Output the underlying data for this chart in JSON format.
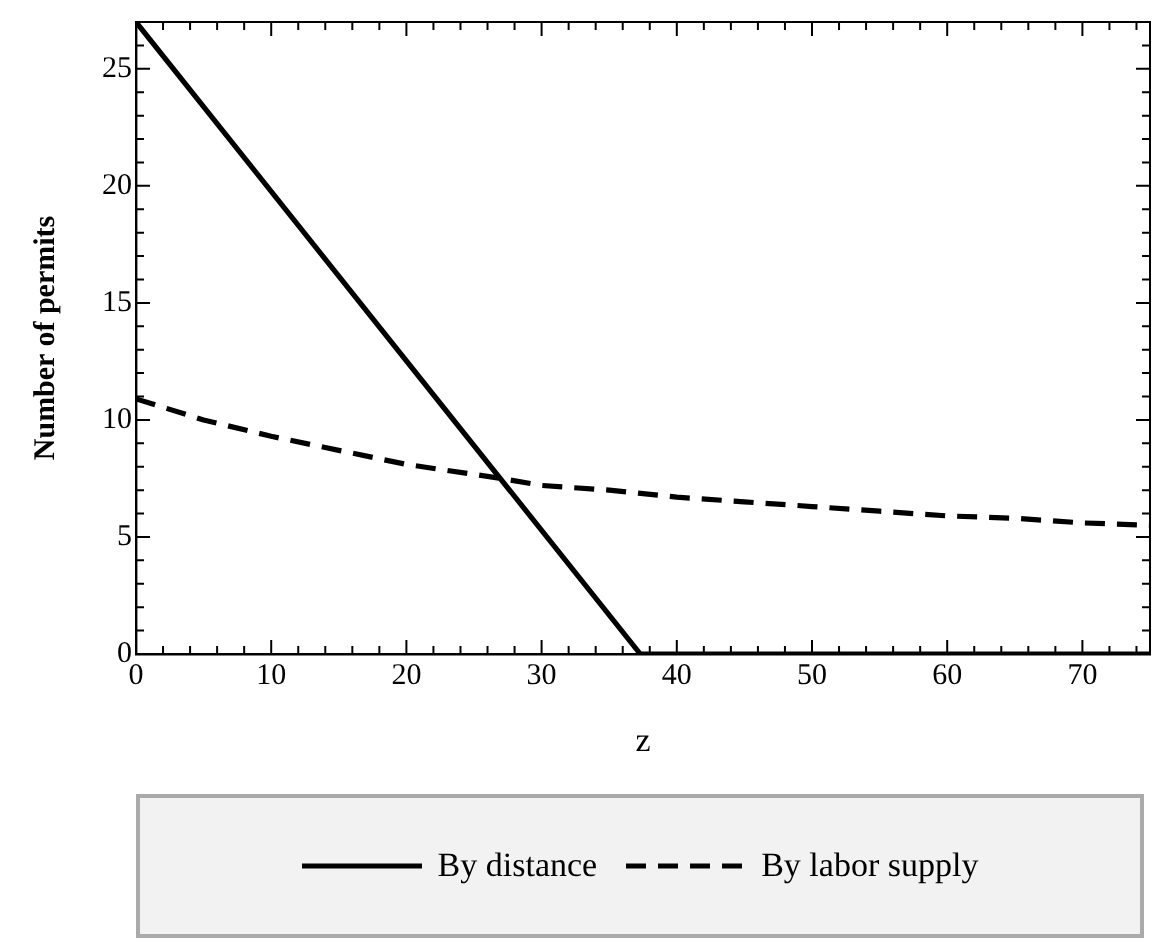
{
  "chart_data": {
    "type": "line",
    "xlabel": "z",
    "ylabel": "Number of permits",
    "xlim": [
      0,
      75
    ],
    "ylim": [
      0,
      27
    ],
    "xticks": [
      0,
      10,
      20,
      30,
      40,
      50,
      60,
      70
    ],
    "yticks": [
      0,
      5,
      10,
      15,
      20,
      25
    ],
    "grid": false,
    "legend": "bottom",
    "marker": "none",
    "series": [
      {
        "name": "By distance",
        "color": "#000000",
        "line_style": "solid",
        "x": [
          0,
          37.3,
          75
        ],
        "values": [
          27,
          0,
          0
        ]
      },
      {
        "name": "By labor supply",
        "color": "#000000",
        "line_style": "dashed",
        "x": [
          0,
          5,
          10,
          15,
          20,
          27,
          30,
          35,
          40,
          45,
          50,
          55,
          60,
          65,
          70,
          75
        ],
        "values": [
          10.9,
          10,
          9.3,
          8.7,
          8.1,
          7.5,
          7.2,
          7,
          6.7,
          6.5,
          6.3,
          6.1,
          5.9,
          5.8,
          5.6,
          5.5
        ]
      }
    ]
  }
}
